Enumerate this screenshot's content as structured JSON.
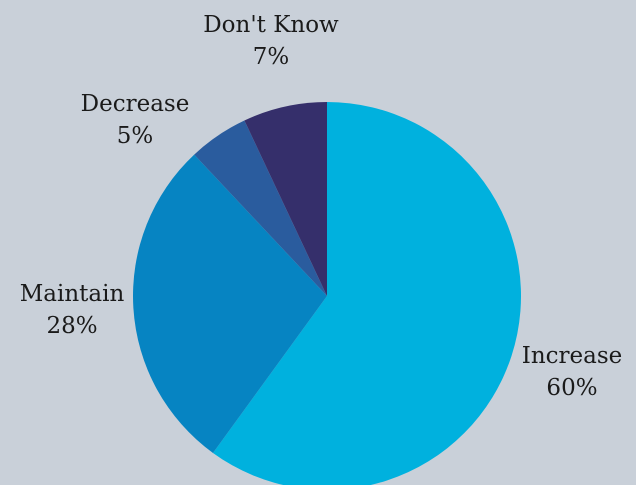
{
  "chart_data": {
    "type": "pie",
    "title": "",
    "start_angle_deg": 0,
    "direction": "clockwise",
    "legend": "none",
    "slices": [
      {
        "label": "Increase",
        "value": 60,
        "value_label": "60%",
        "color": "#00b1de"
      },
      {
        "label": "Maintain",
        "value": 28,
        "value_label": "28%",
        "color": "#0684c2"
      },
      {
        "label": "Decrease",
        "value": 5,
        "value_label": "5%",
        "color": "#2a5c9e"
      },
      {
        "label": "Don't Know",
        "value": 7,
        "value_label": "7%",
        "color": "#352f6b"
      }
    ]
  },
  "colors": {
    "background": "#c9d0d9",
    "label_text": "#1a1a1a"
  }
}
